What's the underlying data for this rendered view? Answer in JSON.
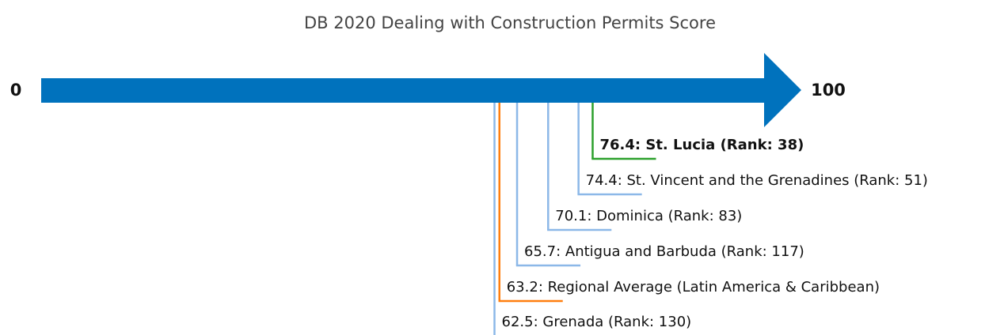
{
  "chart_data": {
    "type": "number-line",
    "title": "DB 2020 Dealing with Construction Permits Score",
    "xlim": [
      0,
      100
    ],
    "xticks": [
      0,
      100
    ],
    "axis_color": "#0072bd",
    "highlight_index": 0,
    "values": [
      76.4,
      74.4,
      70.1,
      65.7,
      63.2,
      62.5
    ],
    "value_labels": [
      "76.4: St. Lucia (Rank: 38)",
      "74.4: St. Vincent and the Grenadines (Rank: 51)",
      "70.1: Dominica (Rank: 83)",
      "65.7: Antigua and Barbuda (Rank: 117)",
      "63.2: Regional Average (Latin America & Caribbean)",
      "62.5: Grenada (Rank: 130)"
    ],
    "colors": [
      "#2ca02c",
      "#8cb8e8",
      "#8cb8e8",
      "#8cb8e8",
      "#ff7f0e",
      "#8cb8e8"
    ]
  }
}
